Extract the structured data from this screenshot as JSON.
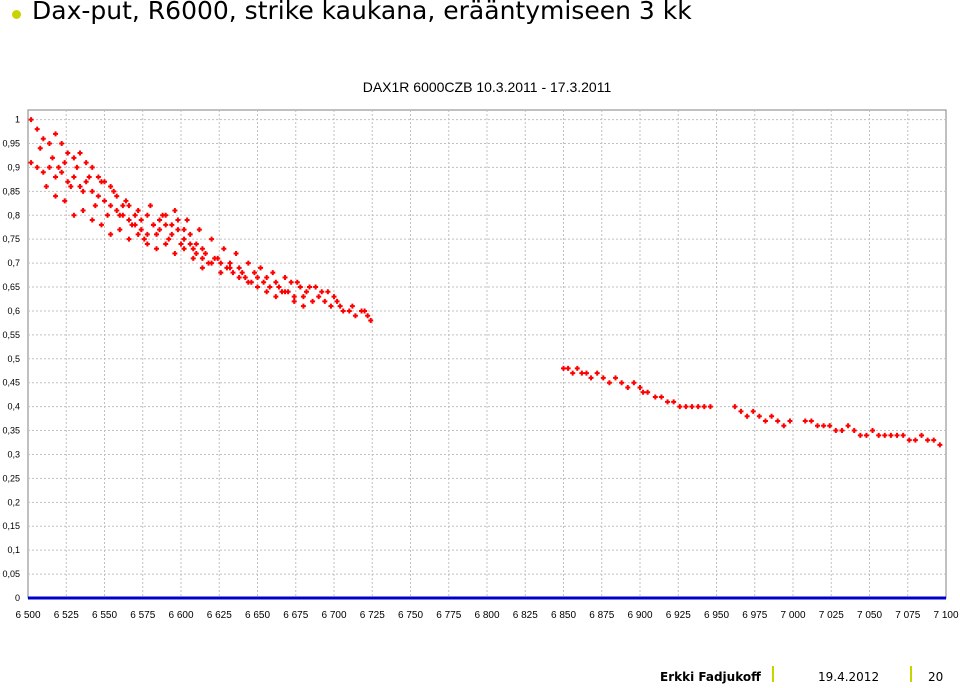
{
  "slide": {
    "title": "Dax-put, R6000, strike kaukana, erääntymiseen 3 kk"
  },
  "footer": {
    "author": "Erkki Fadjukoff",
    "date": "19.4.2012",
    "page": "20"
  },
  "colors": {
    "points": "#ff0000",
    "baseline": "#0000cc",
    "bullet": "#c8d400",
    "grid": "#c0c0c0"
  },
  "chart_data": {
    "type": "scatter",
    "title": "DAX1R 6000CZB    10.3.2011 - 17.3.2011",
    "xlabel": "",
    "ylabel": "",
    "xlim": [
      6500,
      7100
    ],
    "ylim": [
      0,
      1.02
    ],
    "grid": true,
    "xticks": [
      "6 500",
      "6 525",
      "6 550",
      "6 575",
      "6 600",
      "6 625",
      "6 650",
      "6 675",
      "6 700",
      "6 725",
      "6 750",
      "6 775",
      "6 800",
      "6 825",
      "6 850",
      "6 875",
      "6 900",
      "6 925",
      "6 950",
      "6 975",
      "7 000",
      "7 025",
      "7 050",
      "7 075",
      "7 100"
    ],
    "yticks": [
      "0",
      "0,05",
      "0,1",
      "0,15",
      "0,2",
      "0,25",
      "0,3",
      "0,35",
      "0,4",
      "0,45",
      "0,5",
      "0,55",
      "0,6",
      "0,65",
      "0,7",
      "0,75",
      "0,8",
      "0,85",
      "0,9",
      "0,95",
      "1"
    ],
    "series": [
      {
        "points": [
          [
            6502,
            1.0
          ],
          [
            6506,
            0.98
          ],
          [
            6510,
            0.96
          ],
          [
            6514,
            0.95
          ],
          [
            6518,
            0.97
          ],
          [
            6522,
            0.95
          ],
          [
            6526,
            0.93
          ],
          [
            6530,
            0.92
          ],
          [
            6534,
            0.93
          ],
          [
            6538,
            0.91
          ],
          [
            6542,
            0.9
          ],
          [
            6546,
            0.88
          ],
          [
            6550,
            0.87
          ],
          [
            6554,
            0.86
          ],
          [
            6558,
            0.84
          ],
          [
            6562,
            0.82
          ],
          [
            6566,
            0.82
          ],
          [
            6570,
            0.8
          ],
          [
            6574,
            0.79
          ],
          [
            6578,
            0.8
          ],
          [
            6582,
            0.78
          ],
          [
            6586,
            0.77
          ],
          [
            6590,
            0.78
          ],
          [
            6594,
            0.76
          ],
          [
            6598,
            0.77
          ],
          [
            6602,
            0.75
          ],
          [
            6606,
            0.74
          ],
          [
            6610,
            0.72
          ],
          [
            6614,
            0.71
          ],
          [
            6618,
            0.7
          ],
          [
            6622,
            0.71
          ],
          [
            6626,
            0.7
          ],
          [
            6630,
            0.69
          ],
          [
            6634,
            0.68
          ],
          [
            6638,
            0.69
          ],
          [
            6642,
            0.67
          ],
          [
            6646,
            0.66
          ],
          [
            6650,
            0.67
          ],
          [
            6654,
            0.66
          ],
          [
            6658,
            0.65
          ],
          [
            6662,
            0.66
          ],
          [
            6666,
            0.64
          ],
          [
            6670,
            0.64
          ],
          [
            6674,
            0.63
          ],
          [
            6678,
            0.65
          ],
          [
            6682,
            0.64
          ],
          [
            6686,
            0.62
          ],
          [
            6690,
            0.63
          ],
          [
            6694,
            0.62
          ],
          [
            6698,
            0.61
          ],
          [
            6702,
            0.62
          ],
          [
            6706,
            0.6
          ],
          [
            6710,
            0.6
          ],
          [
            6714,
            0.59
          ],
          [
            6718,
            0.6
          ],
          [
            6722,
            0.59
          ],
          [
            6502,
            0.91
          ],
          [
            6506,
            0.9
          ],
          [
            6510,
            0.89
          ],
          [
            6514,
            0.9
          ],
          [
            6518,
            0.88
          ],
          [
            6522,
            0.89
          ],
          [
            6526,
            0.87
          ],
          [
            6530,
            0.88
          ],
          [
            6534,
            0.86
          ],
          [
            6538,
            0.87
          ],
          [
            6542,
            0.85
          ],
          [
            6546,
            0.84
          ],
          [
            6550,
            0.83
          ],
          [
            6554,
            0.82
          ],
          [
            6558,
            0.81
          ],
          [
            6562,
            0.8
          ],
          [
            6566,
            0.79
          ],
          [
            6570,
            0.78
          ],
          [
            6574,
            0.77
          ],
          [
            6578,
            0.76
          ],
          [
            6582,
            0.78
          ],
          [
            6586,
            0.79
          ],
          [
            6590,
            0.8
          ],
          [
            6594,
            0.78
          ],
          [
            6598,
            0.79
          ],
          [
            6602,
            0.77
          ],
          [
            6606,
            0.76
          ],
          [
            6610,
            0.74
          ],
          [
            6614,
            0.73
          ],
          [
            6512,
            0.86
          ],
          [
            6518,
            0.84
          ],
          [
            6524,
            0.83
          ],
          [
            6530,
            0.8
          ],
          [
            6536,
            0.81
          ],
          [
            6542,
            0.79
          ],
          [
            6548,
            0.78
          ],
          [
            6554,
            0.76
          ],
          [
            6560,
            0.77
          ],
          [
            6566,
            0.75
          ],
          [
            6572,
            0.76
          ],
          [
            6578,
            0.74
          ],
          [
            6584,
            0.73
          ],
          [
            6590,
            0.74
          ],
          [
            6596,
            0.72
          ],
          [
            6602,
            0.73
          ],
          [
            6608,
            0.71
          ],
          [
            6614,
            0.69
          ],
          [
            6620,
            0.7
          ],
          [
            6626,
            0.68
          ],
          [
            6632,
            0.69
          ],
          [
            6638,
            0.67
          ],
          [
            6644,
            0.66
          ],
          [
            6650,
            0.65
          ],
          [
            6656,
            0.64
          ],
          [
            6662,
            0.63
          ],
          [
            6668,
            0.64
          ],
          [
            6674,
            0.62
          ],
          [
            6680,
            0.61
          ],
          [
            6508,
            0.94
          ],
          [
            6516,
            0.92
          ],
          [
            6524,
            0.91
          ],
          [
            6532,
            0.9
          ],
          [
            6540,
            0.88
          ],
          [
            6548,
            0.87
          ],
          [
            6556,
            0.85
          ],
          [
            6564,
            0.83
          ],
          [
            6572,
            0.81
          ],
          [
            6580,
            0.82
          ],
          [
            6588,
            0.8
          ],
          [
            6596,
            0.81
          ],
          [
            6604,
            0.79
          ],
          [
            6612,
            0.77
          ],
          [
            6620,
            0.75
          ],
          [
            6628,
            0.73
          ],
          [
            6636,
            0.72
          ],
          [
            6644,
            0.7
          ],
          [
            6652,
            0.69
          ],
          [
            6660,
            0.68
          ],
          [
            6668,
            0.67
          ],
          [
            6676,
            0.66
          ],
          [
            6684,
            0.65
          ],
          [
            6692,
            0.64
          ],
          [
            6700,
            0.63
          ],
          [
            6520,
            0.9
          ],
          [
            6528,
            0.86
          ],
          [
            6536,
            0.85
          ],
          [
            6544,
            0.82
          ],
          [
            6552,
            0.8
          ],
          [
            6560,
            0.8
          ],
          [
            6568,
            0.78
          ],
          [
            6576,
            0.75
          ],
          [
            6584,
            0.76
          ],
          [
            6592,
            0.75
          ],
          [
            6600,
            0.74
          ],
          [
            6608,
            0.73
          ],
          [
            6616,
            0.72
          ],
          [
            6624,
            0.71
          ],
          [
            6632,
            0.7
          ],
          [
            6640,
            0.68
          ],
          [
            6648,
            0.68
          ],
          [
            6656,
            0.67
          ],
          [
            6664,
            0.65
          ],
          [
            6672,
            0.66
          ],
          [
            6680,
            0.63
          ],
          [
            6688,
            0.65
          ],
          [
            6696,
            0.64
          ],
          [
            6704,
            0.61
          ],
          [
            6712,
            0.61
          ],
          [
            6720,
            0.6
          ],
          [
            6724,
            0.58
          ],
          [
            6850,
            0.48
          ],
          [
            6853,
            0.48
          ],
          [
            6856,
            0.47
          ],
          [
            6859,
            0.48
          ],
          [
            6862,
            0.47
          ],
          [
            6865,
            0.47
          ],
          [
            6868,
            0.46
          ],
          [
            6872,
            0.47
          ],
          [
            6876,
            0.46
          ],
          [
            6880,
            0.45
          ],
          [
            6884,
            0.46
          ],
          [
            6888,
            0.45
          ],
          [
            6892,
            0.44
          ],
          [
            6896,
            0.45
          ],
          [
            6900,
            0.44
          ],
          [
            6902,
            0.43
          ],
          [
            6905,
            0.43
          ],
          [
            6910,
            0.42
          ],
          [
            6914,
            0.42
          ],
          [
            6918,
            0.41
          ],
          [
            6922,
            0.41
          ],
          [
            6926,
            0.4
          ],
          [
            6930,
            0.4
          ],
          [
            6934,
            0.4
          ],
          [
            6938,
            0.4
          ],
          [
            6942,
            0.4
          ],
          [
            6946,
            0.4
          ],
          [
            6962,
            0.4
          ],
          [
            6966,
            0.39
          ],
          [
            6970,
            0.38
          ],
          [
            6974,
            0.39
          ],
          [
            6978,
            0.38
          ],
          [
            6982,
            0.37
          ],
          [
            6986,
            0.38
          ],
          [
            6990,
            0.37
          ],
          [
            6994,
            0.36
          ],
          [
            6998,
            0.37
          ],
          [
            7008,
            0.37
          ],
          [
            7012,
            0.37
          ],
          [
            7016,
            0.36
          ],
          [
            7020,
            0.36
          ],
          [
            7024,
            0.36
          ],
          [
            7028,
            0.35
          ],
          [
            7032,
            0.35
          ],
          [
            7036,
            0.36
          ],
          [
            7040,
            0.35
          ],
          [
            7044,
            0.34
          ],
          [
            7048,
            0.34
          ],
          [
            7052,
            0.35
          ],
          [
            7056,
            0.34
          ],
          [
            7060,
            0.34
          ],
          [
            7064,
            0.34
          ],
          [
            7068,
            0.34
          ],
          [
            7072,
            0.34
          ],
          [
            7076,
            0.33
          ],
          [
            7080,
            0.33
          ],
          [
            7084,
            0.34
          ],
          [
            7088,
            0.33
          ],
          [
            7092,
            0.33
          ],
          [
            7096,
            0.32
          ]
        ]
      },
      {
        "name": "",
        "points": [
          [
            6500,
            0
          ],
          [
            7100,
            0
          ]
        ]
      }
    ]
  }
}
